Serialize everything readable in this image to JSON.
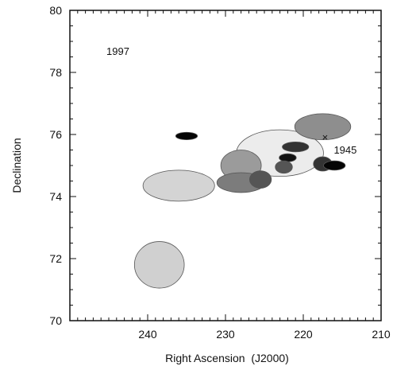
{
  "chart_data": {
    "type": "scatter",
    "title": "",
    "xlabel": "Right Ascension  (J2000)",
    "ylabel": "Declination",
    "xlim": [
      250,
      210
    ],
    "ylim": [
      70,
      80
    ],
    "x_ticks": [
      240,
      230,
      220,
      210
    ],
    "y_ticks": [
      70,
      72,
      74,
      76,
      78,
      80
    ],
    "grid": false,
    "epoch_label": "1997",
    "sources": [
      {
        "ra": 223.0,
        "dec": 75.4,
        "rx": 5.6,
        "ry": 0.75,
        "fill": "#ececec"
      },
      {
        "ra": 236.0,
        "dec": 74.35,
        "rx": 4.6,
        "ry": 0.5,
        "fill": "#d4d4d4"
      },
      {
        "ra": 238.5,
        "dec": 71.8,
        "rx": 3.2,
        "ry": 0.75,
        "fill": "#d0d0d0"
      },
      {
        "ra": 217.5,
        "dec": 76.25,
        "rx": 3.6,
        "ry": 0.42,
        "fill": "#8e8e8e"
      },
      {
        "ra": 228.0,
        "dec": 75.0,
        "rx": 2.6,
        "ry": 0.5,
        "fill": "#9b9b9b"
      },
      {
        "ra": 228.0,
        "dec": 74.45,
        "rx": 3.1,
        "ry": 0.32,
        "fill": "#7c7c7c"
      },
      {
        "ra": 225.5,
        "dec": 74.55,
        "rx": 1.4,
        "ry": 0.28,
        "fill": "#555555"
      },
      {
        "ra": 221.0,
        "dec": 75.6,
        "rx": 1.7,
        "ry": 0.16,
        "fill": "#333333"
      },
      {
        "ra": 222.0,
        "dec": 75.25,
        "rx": 1.1,
        "ry": 0.13,
        "fill": "#111111"
      },
      {
        "ra": 222.5,
        "dec": 74.95,
        "rx": 1.1,
        "ry": 0.2,
        "fill": "#555555"
      },
      {
        "ra": 217.5,
        "dec": 75.05,
        "rx": 1.2,
        "ry": 0.23,
        "fill": "#333333"
      },
      {
        "ra": 216.0,
        "dec": 75.0,
        "rx": 1.4,
        "ry": 0.15,
        "fill": "#050505"
      },
      {
        "ra": 235.0,
        "dec": 75.95,
        "rx": 1.4,
        "ry": 0.12,
        "fill": "#050505"
      }
    ],
    "marker": {
      "ra": 217.2,
      "dec": 75.9,
      "symbol": "×",
      "label": "1945"
    }
  }
}
